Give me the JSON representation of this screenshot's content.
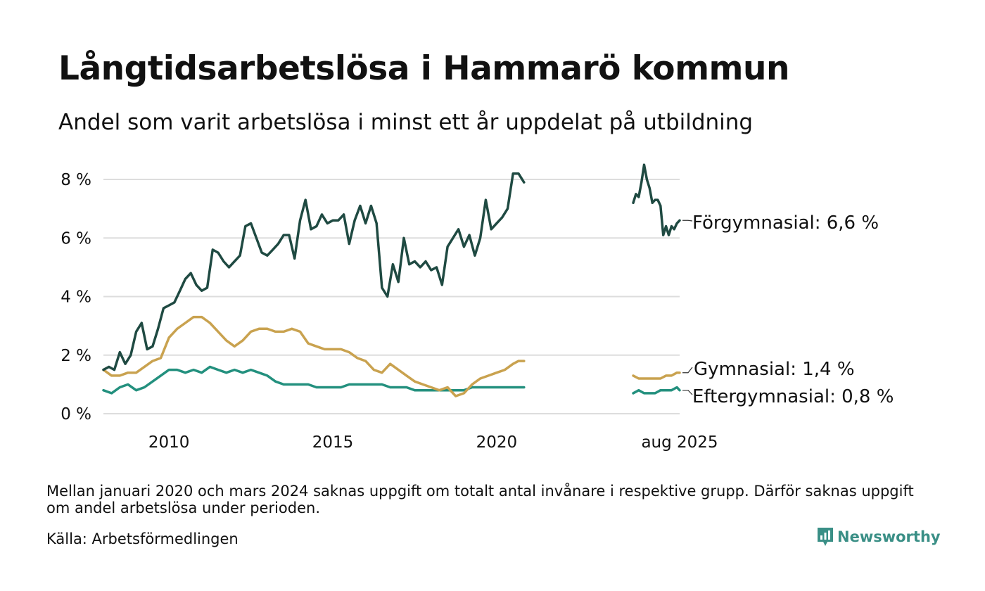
{
  "title": "Långtidsarbetslösa i Hammarö kommun",
  "subtitle": "Andel som varit arbetslösa i minst ett år uppdelat på utbildning",
  "note": "Mellan januari 2020 och mars 2024 saknas uppgift om totalt antal invånare i respektive grupp. Därför saknas uppgift om andel arbetslösa under perioden.",
  "source": "Källa: Arbetsförmedlingen",
  "brand": "Newsworthy",
  "colors": {
    "forgymnasial": "#1f4a42",
    "gymnasial": "#c9a24f",
    "eftergymnasial": "#23907e",
    "grid": "#dddddd",
    "brand": "#3a8f86"
  },
  "chart_data": {
    "type": "line",
    "title": "Långtidsarbetslösa i Hammarö kommun",
    "subtitle": "Andel som varit arbetslösa i minst ett år uppdelat på utbildning",
    "x_ticks": [
      "2010",
      "2015",
      "2020",
      "aug 2025"
    ],
    "y_ticks": [
      "0 %",
      "2 %",
      "4 %",
      "6 %",
      "8 %"
    ],
    "ylim": [
      0,
      8
    ],
    "xlim": [
      "2008-01",
      "2025-08"
    ],
    "grid": true,
    "gap": [
      "2020-01",
      "2024-03"
    ],
    "series": [
      {
        "name": "Förgymnasial",
        "end_label": "Förgymnasial: 6,6 %",
        "color": "#1f4a42",
        "segments": [
          [
            [
              "2008-01",
              1.5
            ],
            [
              "2008-03",
              1.6
            ],
            [
              "2008-05",
              1.5
            ],
            [
              "2008-07",
              2.1
            ],
            [
              "2008-09",
              1.7
            ],
            [
              "2008-11",
              2.0
            ],
            [
              "2009-01",
              2.8
            ],
            [
              "2009-03",
              3.1
            ],
            [
              "2009-05",
              2.2
            ],
            [
              "2009-07",
              2.3
            ],
            [
              "2009-09",
              2.9
            ],
            [
              "2009-11",
              3.6
            ],
            [
              "2010-01",
              3.7
            ],
            [
              "2010-03",
              3.8
            ],
            [
              "2010-05",
              4.2
            ],
            [
              "2010-07",
              4.6
            ],
            [
              "2010-09",
              4.8
            ],
            [
              "2010-11",
              4.4
            ],
            [
              "2011-01",
              4.2
            ],
            [
              "2011-03",
              4.3
            ],
            [
              "2011-05",
              5.6
            ],
            [
              "2011-07",
              5.5
            ],
            [
              "2011-09",
              5.2
            ],
            [
              "2011-11",
              5.0
            ],
            [
              "2012-01",
              5.2
            ],
            [
              "2012-03",
              5.4
            ],
            [
              "2012-05",
              6.4
            ],
            [
              "2012-07",
              6.5
            ],
            [
              "2012-09",
              6.0
            ],
            [
              "2012-11",
              5.5
            ],
            [
              "2013-01",
              5.4
            ],
            [
              "2013-03",
              5.6
            ],
            [
              "2013-05",
              5.8
            ],
            [
              "2013-07",
              6.1
            ],
            [
              "2013-09",
              6.1
            ],
            [
              "2013-11",
              5.3
            ],
            [
              "2014-01",
              6.6
            ],
            [
              "2014-03",
              7.3
            ],
            [
              "2014-05",
              6.3
            ],
            [
              "2014-07",
              6.4
            ],
            [
              "2014-09",
              6.8
            ],
            [
              "2014-11",
              6.5
            ],
            [
              "2015-01",
              6.6
            ],
            [
              "2015-03",
              6.6
            ],
            [
              "2015-05",
              6.8
            ],
            [
              "2015-07",
              5.8
            ],
            [
              "2015-09",
              6.6
            ],
            [
              "2015-11",
              7.1
            ],
            [
              "2016-01",
              6.5
            ],
            [
              "2016-03",
              7.1
            ],
            [
              "2016-05",
              6.5
            ],
            [
              "2016-07",
              4.3
            ],
            [
              "2016-09",
              4.0
            ],
            [
              "2016-11",
              5.1
            ],
            [
              "2017-01",
              4.5
            ],
            [
              "2017-03",
              6.0
            ],
            [
              "2017-05",
              5.1
            ],
            [
              "2017-07",
              5.2
            ],
            [
              "2017-09",
              5.0
            ],
            [
              "2017-11",
              5.2
            ],
            [
              "2018-01",
              4.9
            ],
            [
              "2018-03",
              5.0
            ],
            [
              "2018-05",
              4.4
            ],
            [
              "2018-07",
              5.7
            ],
            [
              "2018-09",
              6.0
            ],
            [
              "2018-11",
              6.3
            ],
            [
              "2019-01",
              5.7
            ],
            [
              "2019-03",
              6.1
            ],
            [
              "2019-05",
              5.4
            ],
            [
              "2019-07",
              6.0
            ],
            [
              "2019-09",
              7.3
            ],
            [
              "2019-11",
              6.3
            ],
            [
              "2020-01",
              6.5
            ],
            [
              "2020-03",
              6.7
            ],
            [
              "2020-05",
              7.0
            ],
            [
              "2020-07",
              8.2
            ],
            [
              "2020-09",
              8.2
            ],
            [
              "2020-11",
              7.9
            ]
          ],
          [
            [
              "2024-03",
              7.2
            ],
            [
              "2024-04",
              7.5
            ],
            [
              "2024-05",
              7.4
            ],
            [
              "2024-06",
              7.9
            ],
            [
              "2024-07",
              8.5
            ],
            [
              "2024-08",
              8.0
            ],
            [
              "2024-09",
              7.7
            ],
            [
              "2024-10",
              7.2
            ],
            [
              "2024-11",
              7.3
            ],
            [
              "2024-12",
              7.3
            ],
            [
              "2025-01",
              7.1
            ],
            [
              "2025-02",
              6.1
            ],
            [
              "2025-03",
              6.4
            ],
            [
              "2025-04",
              6.1
            ],
            [
              "2025-05",
              6.4
            ],
            [
              "2025-06",
              6.3
            ],
            [
              "2025-07",
              6.5
            ],
            [
              "2025-08",
              6.6
            ]
          ]
        ]
      },
      {
        "name": "Gymnasial",
        "end_label": "Gymnasial: 1,4 %",
        "color": "#c9a24f",
        "segments": [
          [
            [
              "2008-01",
              1.5
            ],
            [
              "2008-04",
              1.3
            ],
            [
              "2008-07",
              1.3
            ],
            [
              "2008-10",
              1.4
            ],
            [
              "2009-01",
              1.4
            ],
            [
              "2009-04",
              1.6
            ],
            [
              "2009-07",
              1.8
            ],
            [
              "2009-10",
              1.9
            ],
            [
              "2010-01",
              2.6
            ],
            [
              "2010-04",
              2.9
            ],
            [
              "2010-07",
              3.1
            ],
            [
              "2010-10",
              3.3
            ],
            [
              "2011-01",
              3.3
            ],
            [
              "2011-04",
              3.1
            ],
            [
              "2011-07",
              2.8
            ],
            [
              "2011-10",
              2.5
            ],
            [
              "2012-01",
              2.3
            ],
            [
              "2012-04",
              2.5
            ],
            [
              "2012-07",
              2.8
            ],
            [
              "2012-10",
              2.9
            ],
            [
              "2013-01",
              2.9
            ],
            [
              "2013-04",
              2.8
            ],
            [
              "2013-07",
              2.8
            ],
            [
              "2013-10",
              2.9
            ],
            [
              "2014-01",
              2.8
            ],
            [
              "2014-04",
              2.4
            ],
            [
              "2014-07",
              2.3
            ],
            [
              "2014-10",
              2.2
            ],
            [
              "2015-01",
              2.2
            ],
            [
              "2015-04",
              2.2
            ],
            [
              "2015-07",
              2.1
            ],
            [
              "2015-10",
              1.9
            ],
            [
              "2016-01",
              1.8
            ],
            [
              "2016-04",
              1.5
            ],
            [
              "2016-07",
              1.4
            ],
            [
              "2016-10",
              1.7
            ],
            [
              "2017-01",
              1.5
            ],
            [
              "2017-04",
              1.3
            ],
            [
              "2017-07",
              1.1
            ],
            [
              "2017-10",
              1.0
            ],
            [
              "2018-01",
              0.9
            ],
            [
              "2018-04",
              0.8
            ],
            [
              "2018-07",
              0.9
            ],
            [
              "2018-10",
              0.6
            ],
            [
              "2019-01",
              0.7
            ],
            [
              "2019-04",
              1.0
            ],
            [
              "2019-07",
              1.2
            ],
            [
              "2019-10",
              1.3
            ],
            [
              "2020-01",
              1.4
            ],
            [
              "2020-04",
              1.5
            ],
            [
              "2020-07",
              1.7
            ],
            [
              "2020-09",
              1.8
            ],
            [
              "2020-11",
              1.8
            ]
          ],
          [
            [
              "2024-03",
              1.3
            ],
            [
              "2024-05",
              1.2
            ],
            [
              "2024-07",
              1.2
            ],
            [
              "2024-09",
              1.2
            ],
            [
              "2024-11",
              1.2
            ],
            [
              "2025-01",
              1.2
            ],
            [
              "2025-03",
              1.3
            ],
            [
              "2025-05",
              1.3
            ],
            [
              "2025-07",
              1.4
            ],
            [
              "2025-08",
              1.4
            ]
          ]
        ]
      },
      {
        "name": "Eftergymnasial",
        "end_label": "Eftergymnasial: 0,8 %",
        "color": "#23907e",
        "segments": [
          [
            [
              "2008-01",
              0.8
            ],
            [
              "2008-04",
              0.7
            ],
            [
              "2008-07",
              0.9
            ],
            [
              "2008-10",
              1.0
            ],
            [
              "2009-01",
              0.8
            ],
            [
              "2009-04",
              0.9
            ],
            [
              "2009-07",
              1.1
            ],
            [
              "2009-10",
              1.3
            ],
            [
              "2010-01",
              1.5
            ],
            [
              "2010-04",
              1.5
            ],
            [
              "2010-07",
              1.4
            ],
            [
              "2010-10",
              1.5
            ],
            [
              "2011-01",
              1.4
            ],
            [
              "2011-04",
              1.6
            ],
            [
              "2011-07",
              1.5
            ],
            [
              "2011-10",
              1.4
            ],
            [
              "2012-01",
              1.5
            ],
            [
              "2012-04",
              1.4
            ],
            [
              "2012-07",
              1.5
            ],
            [
              "2012-10",
              1.4
            ],
            [
              "2013-01",
              1.3
            ],
            [
              "2013-04",
              1.1
            ],
            [
              "2013-07",
              1.0
            ],
            [
              "2013-10",
              1.0
            ],
            [
              "2014-01",
              1.0
            ],
            [
              "2014-04",
              1.0
            ],
            [
              "2014-07",
              0.9
            ],
            [
              "2014-10",
              0.9
            ],
            [
              "2015-01",
              0.9
            ],
            [
              "2015-04",
              0.9
            ],
            [
              "2015-07",
              1.0
            ],
            [
              "2015-10",
              1.0
            ],
            [
              "2016-01",
              1.0
            ],
            [
              "2016-04",
              1.0
            ],
            [
              "2016-07",
              1.0
            ],
            [
              "2016-10",
              0.9
            ],
            [
              "2017-01",
              0.9
            ],
            [
              "2017-04",
              0.9
            ],
            [
              "2017-07",
              0.8
            ],
            [
              "2017-10",
              0.8
            ],
            [
              "2018-01",
              0.8
            ],
            [
              "2018-04",
              0.8
            ],
            [
              "2018-07",
              0.8
            ],
            [
              "2018-10",
              0.8
            ],
            [
              "2019-01",
              0.8
            ],
            [
              "2019-04",
              0.9
            ],
            [
              "2019-07",
              0.9
            ],
            [
              "2019-10",
              0.9
            ],
            [
              "2020-01",
              0.9
            ],
            [
              "2020-04",
              0.9
            ],
            [
              "2020-07",
              0.9
            ],
            [
              "2020-09",
              0.9
            ],
            [
              "2020-11",
              0.9
            ]
          ],
          [
            [
              "2024-03",
              0.7
            ],
            [
              "2024-05",
              0.8
            ],
            [
              "2024-07",
              0.7
            ],
            [
              "2024-09",
              0.7
            ],
            [
              "2024-11",
              0.7
            ],
            [
              "2025-01",
              0.8
            ],
            [
              "2025-03",
              0.8
            ],
            [
              "2025-05",
              0.8
            ],
            [
              "2025-07",
              0.9
            ],
            [
              "2025-08",
              0.8
            ]
          ]
        ]
      }
    ]
  }
}
